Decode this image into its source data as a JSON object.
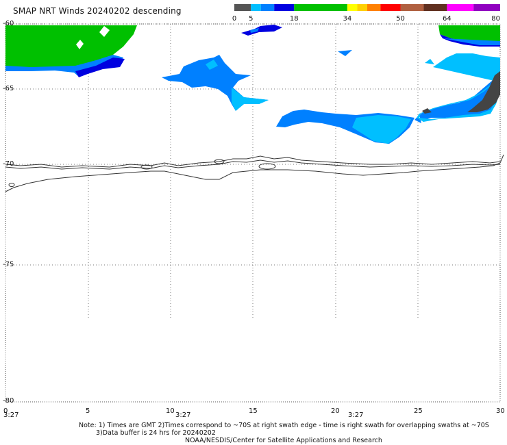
{
  "title": "SMAP NRT Winds  20240202 descending",
  "colorbar": {
    "labels": [
      "0",
      "5",
      "18",
      "34",
      "50",
      "64",
      "80"
    ],
    "segments": [
      {
        "from": 0,
        "to": 5,
        "color": "#555555"
      },
      {
        "from": 5,
        "to": 8,
        "color": "#00bfff"
      },
      {
        "from": 8,
        "to": 12,
        "color": "#0080ff"
      },
      {
        "from": 12,
        "to": 18,
        "color": "#0000e0"
      },
      {
        "from": 18,
        "to": 34,
        "color": "#00c000"
      },
      {
        "from": 34,
        "to": 37,
        "color": "#ffff00"
      },
      {
        "from": 37,
        "to": 40,
        "color": "#ffd000"
      },
      {
        "from": 40,
        "to": 44,
        "color": "#ff8000"
      },
      {
        "from": 44,
        "to": 50,
        "color": "#ff0000"
      },
      {
        "from": 50,
        "to": 57,
        "color": "#b06040"
      },
      {
        "from": 57,
        "to": 64,
        "color": "#603020"
      },
      {
        "from": 64,
        "to": 72,
        "color": "#ff00ff"
      },
      {
        "from": 72,
        "to": 80,
        "color": "#9000c0"
      }
    ]
  },
  "y_ticks": [
    "-60",
    "-65",
    "-70",
    "-75",
    "-80"
  ],
  "x_ticks": [
    "0",
    "5",
    "10",
    "15",
    "20",
    "25",
    "30"
  ],
  "time_labels": [
    "3:27",
    "3:27",
    "3:27"
  ],
  "note": {
    "line1": "Note: 1) Times are GMT 2)Times correspond to ~70S at right swath edge - time is right swath for overlapping swaths at ~70S",
    "line2": "3)Data buffer is 24 hrs for 20240202",
    "line3": "NOAA/NESDIS/Center for Satellite Applications and Research"
  },
  "colors": {
    "green": "#00c000",
    "blue_dark": "#0000e0",
    "blue_mid": "#0080ff",
    "blue_light": "#00bfff",
    "gray_dark": "#444444",
    "coast": "#333333"
  }
}
